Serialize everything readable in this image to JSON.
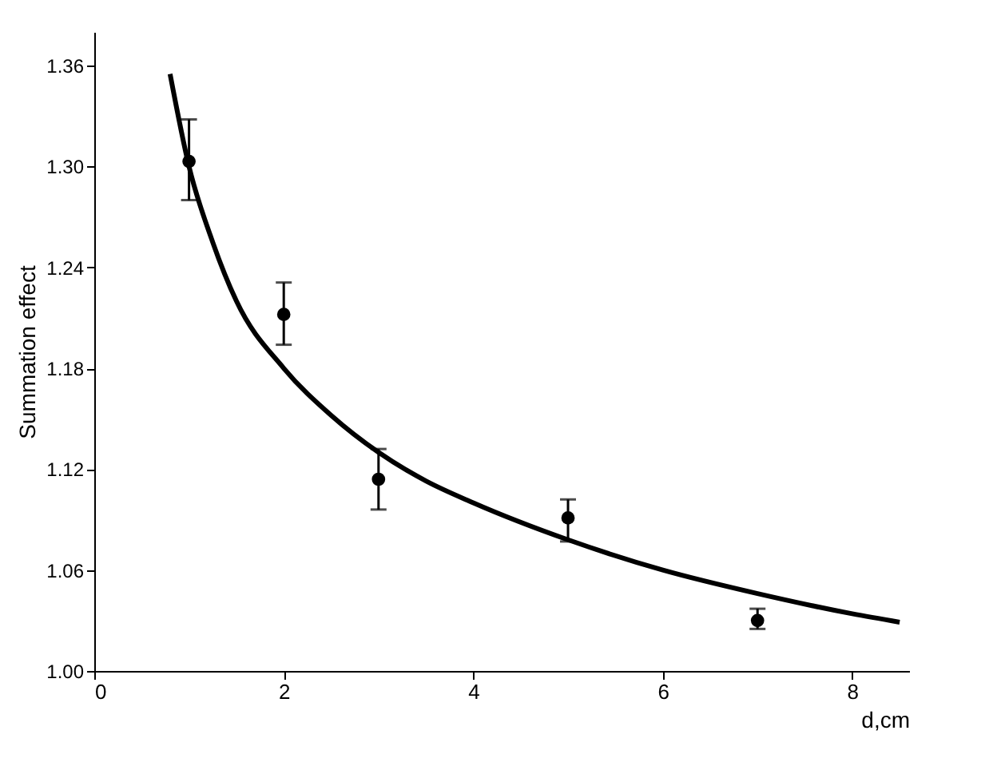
{
  "chart_data": {
    "type": "scatter",
    "xlabel": "d,cm",
    "ylabel": "Summation effect",
    "xlim": [
      0,
      8.6
    ],
    "ylim": [
      1.0,
      1.38
    ],
    "xticks": [
      0,
      2,
      4,
      6,
      8
    ],
    "yticks": [
      {
        "value": 1.0,
        "label": "1.00"
      },
      {
        "value": 1.06,
        "label": "1.06"
      },
      {
        "value": 1.12,
        "label": "1.12"
      },
      {
        "value": 1.18,
        "label": "1.18"
      },
      {
        "value": 1.24,
        "label": "1.24"
      },
      {
        "value": 1.3,
        "label": "1.30"
      },
      {
        "value": 1.36,
        "label": "1.36"
      }
    ],
    "series": [
      {
        "color": "#000000",
        "marker": "circle",
        "x": [
          1,
          2,
          3,
          5,
          7
        ],
        "values": [
          1.303,
          1.212,
          1.114,
          1.091,
          1.03
        ],
        "errors": [
          [
            1.28,
            1.328
          ],
          [
            1.194,
            1.231
          ],
          [
            1.096,
            1.132
          ],
          [
            1.077,
            1.102
          ],
          [
            1.025,
            1.037
          ]
        ]
      },
      {
        "type": "line",
        "color": "#000000",
        "line_style": "solid",
        "x": [
          0.8,
          1,
          1.25,
          1.5,
          2,
          2.5,
          3,
          3.5,
          4,
          5,
          6,
          7,
          8,
          8.5
        ],
        "values": [
          1.355,
          1.3,
          1.255,
          1.22,
          1.18,
          1.152,
          1.13,
          1.113,
          1.1,
          1.078,
          1.06,
          1.046,
          1.034,
          1.029
        ]
      }
    ]
  }
}
